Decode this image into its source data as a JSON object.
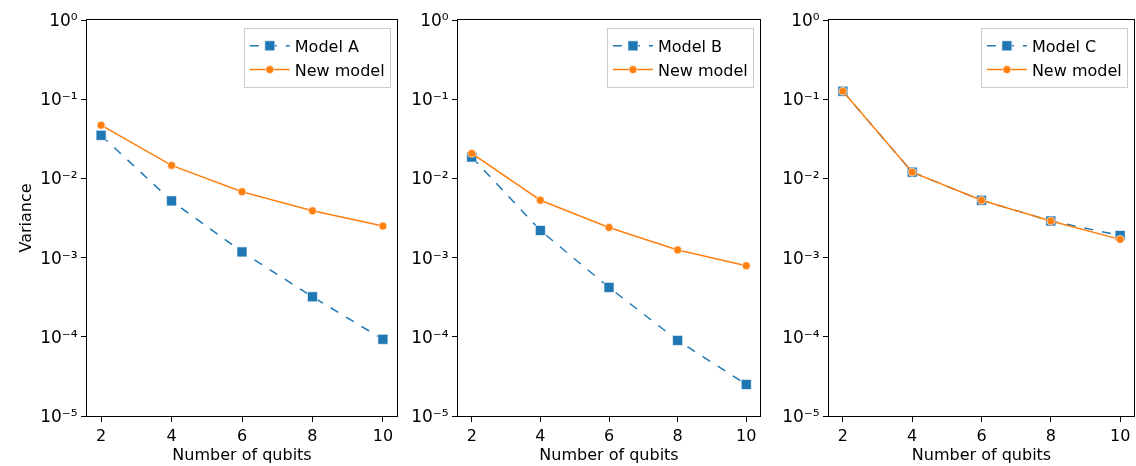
{
  "chart_data": [
    {
      "type": "line",
      "xlabel": "Number of qubits",
      "ylabel": "Variance",
      "x": [
        2,
        4,
        6,
        8,
        10
      ],
      "log": "y",
      "xlim": [
        1.6,
        10.4
      ],
      "xticks": [
        2,
        4,
        6,
        8,
        10
      ],
      "ylim": [
        1e-05,
        1
      ],
      "yticks": [
        {
          "value": 1e-05,
          "label": "10⁻⁵"
        },
        {
          "value": 0.0001,
          "label": "10⁻⁴"
        },
        {
          "value": 0.001,
          "label": "10⁻³"
        },
        {
          "value": 0.01,
          "label": "10⁻²"
        },
        {
          "value": 0.1,
          "label": "10⁻¹"
        },
        {
          "value": 1,
          "label": "10⁰"
        }
      ],
      "grid": false,
      "legend": "top right",
      "series": [
        {
          "name": "Model A",
          "color": "#1f77b4",
          "marker": "square",
          "line_style": "dashed",
          "values": [
            0.035,
            0.0052,
            0.00118,
            0.00032,
            9.3e-05
          ]
        },
        {
          "name": "New model",
          "color": "#ff7f0e",
          "marker": "circle",
          "line_style": "solid",
          "values": [
            0.047,
            0.0146,
            0.0068,
            0.0039,
            0.0025
          ]
        }
      ]
    },
    {
      "type": "line",
      "xlabel": "Number of qubits",
      "x": [
        2,
        4,
        6,
        8,
        10
      ],
      "log": "y",
      "xlim": [
        1.6,
        10.4
      ],
      "xticks": [
        2,
        4,
        6,
        8,
        10
      ],
      "ylim": [
        1e-05,
        1
      ],
      "yticks": [
        {
          "value": 1e-05,
          "label": "10⁻⁵"
        },
        {
          "value": 0.0001,
          "label": "10⁻⁴"
        },
        {
          "value": 0.001,
          "label": "10⁻³"
        },
        {
          "value": 0.01,
          "label": "10⁻²"
        },
        {
          "value": 0.1,
          "label": "10⁻¹"
        },
        {
          "value": 1,
          "label": "10⁰"
        }
      ],
      "grid": false,
      "legend": "top right",
      "series": [
        {
          "name": "Model B",
          "color": "#1f77b4",
          "marker": "square",
          "line_style": "dashed",
          "values": [
            0.0186,
            0.0022,
            0.00042,
            9e-05,
            2.5e-05
          ]
        },
        {
          "name": "New model",
          "color": "#ff7f0e",
          "marker": "circle",
          "line_style": "solid",
          "values": [
            0.0207,
            0.0053,
            0.0024,
            0.00125,
            0.00079
          ]
        }
      ]
    },
    {
      "type": "line",
      "xlabel": "Number of qubits",
      "x": [
        2,
        4,
        6,
        8,
        10
      ],
      "log": "y",
      "xlim": [
        1.6,
        10.4
      ],
      "xticks": [
        2,
        4,
        6,
        8,
        10
      ],
      "ylim": [
        1e-05,
        1
      ],
      "yticks": [
        {
          "value": 1e-05,
          "label": "10⁻⁵"
        },
        {
          "value": 0.0001,
          "label": "10⁻⁴"
        },
        {
          "value": 0.001,
          "label": "10⁻³"
        },
        {
          "value": 0.01,
          "label": "10⁻²"
        },
        {
          "value": 0.1,
          "label": "10⁻¹"
        },
        {
          "value": 1,
          "label": "10⁰"
        }
      ],
      "grid": false,
      "legend": "top right",
      "series": [
        {
          "name": "Model C",
          "color": "#1f77b4",
          "marker": "square",
          "line_style": "dashed",
          "values": [
            0.126,
            0.012,
            0.0053,
            0.0029,
            0.0019
          ]
        },
        {
          "name": "New model",
          "color": "#ff7f0e",
          "marker": "circle",
          "line_style": "solid",
          "values": [
            0.126,
            0.012,
            0.0053,
            0.0029,
            0.0017
          ]
        }
      ]
    }
  ]
}
